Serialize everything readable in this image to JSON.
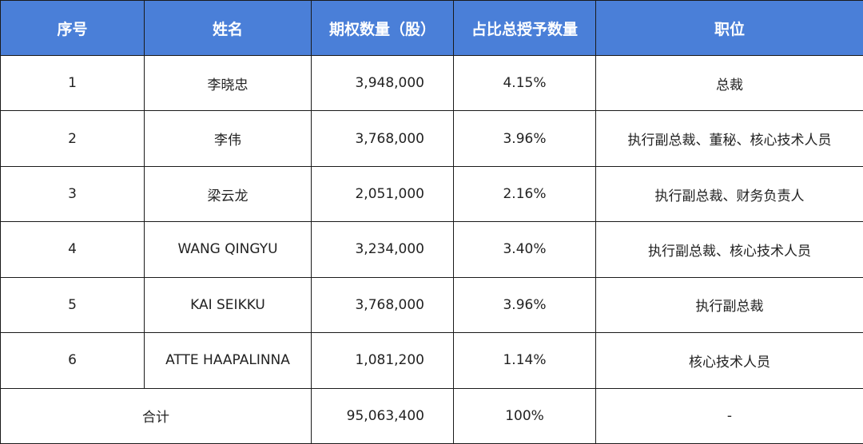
{
  "headers": [
    "序号",
    "姓名",
    "期权数量（股）",
    "占比总授予数量",
    "职位"
  ],
  "rows": [
    {
      "no": "1",
      "name": "李晓忠",
      "quantity": "3,948,000",
      "ratio": "4.15%",
      "position": "总裁"
    },
    {
      "no": "2",
      "name": "李伟",
      "quantity": "3,768,000",
      "ratio": "3.96%",
      "position": "执行副总裁、董秘、核心技术人员"
    },
    {
      "no": "3",
      "name": "梁云龙",
      "quantity": "2,051,000",
      "ratio": "2.16%",
      "position": "执行副总裁、财务负责人"
    },
    {
      "no": "4",
      "name": "WANG QINGYU",
      "quantity": "3,234,000",
      "ratio": "3.40%",
      "position": "执行副总裁、核心技术人员"
    },
    {
      "no": "5",
      "name": "KAI SEIKKU",
      "quantity": "3,768,000",
      "ratio": "3.96%",
      "position": "执行副总裁"
    },
    {
      "no": "6",
      "name": "ATTE HAAPALINNA",
      "quantity": "1,081,200",
      "ratio": "1.14%",
      "position": "核心技术人员"
    }
  ],
  "total": {
    "label": "合计",
    "quantity": "95,063,400",
    "ratio": "100%",
    "position": "-"
  },
  "colors": {
    "header_bg": "#4a7fd8",
    "header_text": "#ffffff",
    "border": "#1a1a1a"
  }
}
